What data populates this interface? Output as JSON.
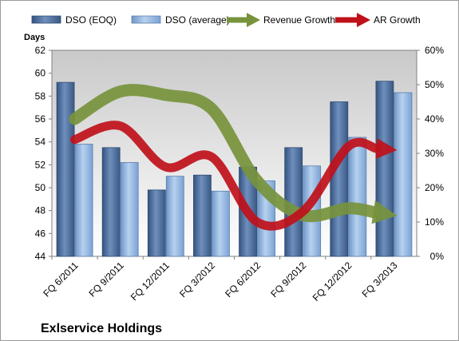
{
  "chart_data": {
    "type": "bar",
    "title": "Exlservice Holdings",
    "ylabel": "Days",
    "categories": [
      "FQ 6/2011",
      "FQ 9/2011",
      "FQ 12/2011",
      "FQ 3/2012",
      "FQ 6/2012",
      "FQ 9/2012",
      "FQ 12/2012",
      "FQ 3/2013"
    ],
    "ylim": [
      44,
      62
    ],
    "yticks": [
      44,
      46,
      48,
      50,
      52,
      54,
      56,
      58,
      60,
      62
    ],
    "y2lim": [
      0,
      60
    ],
    "y2ticks": [
      "0%",
      "10%",
      "20%",
      "30%",
      "40%",
      "50%",
      "60%"
    ],
    "grid": false,
    "legend_position": "top",
    "series": [
      {
        "name": "DSO (EOQ)",
        "axis": "left",
        "kind": "bar",
        "color": "#4a6a9a",
        "values": [
          59.2,
          53.5,
          49.8,
          51.1,
          51.8,
          53.5,
          57.5,
          59.3
        ]
      },
      {
        "name": "DSO (average)",
        "axis": "left",
        "kind": "bar",
        "color": "#8eb4e3",
        "values": [
          53.8,
          52.2,
          51.0,
          49.7,
          50.6,
          51.9,
          54.4,
          58.3
        ]
      },
      {
        "name": "Revenue Growth",
        "axis": "right",
        "kind": "line",
        "color": "#77933c",
        "values": [
          40,
          48,
          47,
          43,
          22,
          12,
          14,
          12
        ]
      },
      {
        "name": "AR Growth",
        "axis": "right",
        "kind": "line",
        "color": "#c0101a",
        "values": [
          34,
          38,
          26,
          29,
          10,
          13,
          32,
          31
        ]
      }
    ]
  }
}
